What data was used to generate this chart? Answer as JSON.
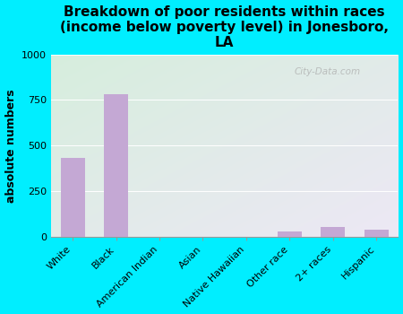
{
  "categories": [
    "White",
    "Black",
    "American Indian",
    "Asian",
    "Native Hawaiian",
    "Other race",
    "2+ races",
    "Hispanic"
  ],
  "values": [
    430,
    780,
    0,
    0,
    0,
    30,
    55,
    40
  ],
  "bar_color": "#c4a8d4",
  "title": "Breakdown of poor residents within races\n(income below poverty level) in Jonesboro,\nLA",
  "ylabel": "absolute numbers",
  "ylim": [
    0,
    1000
  ],
  "yticks": [
    0,
    250,
    500,
    750,
    1000
  ],
  "bg_outer": "#00eeff",
  "bg_plot_topleft": "#d6eedd",
  "bg_plot_bottomright": "#ede8f5",
  "watermark": "City-Data.com",
  "title_fontsize": 11,
  "ylabel_fontsize": 9,
  "tick_fontsize": 8
}
